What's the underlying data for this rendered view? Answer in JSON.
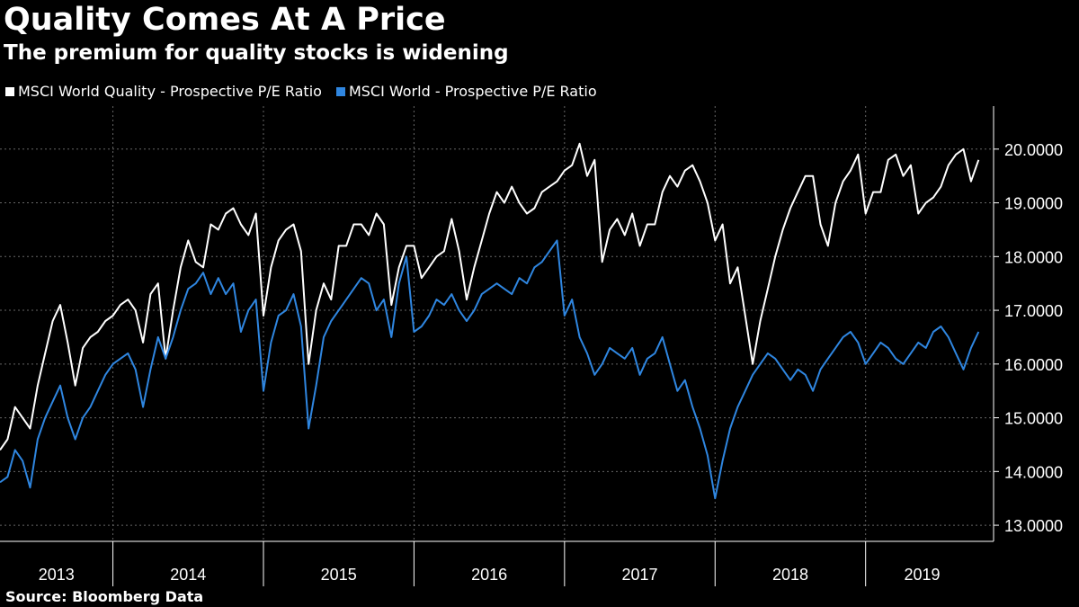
{
  "chart_data": {
    "type": "line",
    "title": "Quality Comes At A Price",
    "subtitle": "The premium for quality stocks is widening",
    "source": "Source:  Bloomberg Data",
    "ylim": [
      12.7,
      20.8
    ],
    "yticks": [
      "13.0000",
      "14.0000",
      "15.0000",
      "16.0000",
      "17.0000",
      "18.0000",
      "19.0000",
      "20.0000"
    ],
    "ytick_values": [
      13,
      14,
      15,
      16,
      17,
      18,
      19,
      20
    ],
    "x_range": [
      2013.0,
      2019.6
    ],
    "year_labels": [
      "2013",
      "2014",
      "2015",
      "2016",
      "2017",
      "2018",
      "2019"
    ],
    "year_boundaries": [
      2013.75,
      2014.75,
      2015.75,
      2016.75,
      2017.75,
      2018.75
    ],
    "series": [
      {
        "name": "MSCI World Quality - Prospective P/E Ratio",
        "color": "#ffffff",
        "x": [
          2013.0,
          2013.05,
          2013.1,
          2013.15,
          2013.2,
          2013.25,
          2013.3,
          2013.35,
          2013.4,
          2013.45,
          2013.5,
          2013.55,
          2013.6,
          2013.65,
          2013.7,
          2013.75,
          2013.8,
          2013.85,
          2013.9,
          2013.95,
          2014.0,
          2014.05,
          2014.1,
          2014.15,
          2014.2,
          2014.25,
          2014.3,
          2014.35,
          2014.4,
          2014.45,
          2014.5,
          2014.55,
          2014.6,
          2014.65,
          2014.7,
          2014.75,
          2014.8,
          2014.85,
          2014.9,
          2014.95,
          2015.0,
          2015.05,
          2015.1,
          2015.15,
          2015.2,
          2015.25,
          2015.3,
          2015.35,
          2015.4,
          2015.45,
          2015.5,
          2015.55,
          2015.6,
          2015.65,
          2015.7,
          2015.75,
          2015.8,
          2015.85,
          2015.9,
          2015.95,
          2016.0,
          2016.05,
          2016.1,
          2016.15,
          2016.2,
          2016.25,
          2016.3,
          2016.35,
          2016.4,
          2016.45,
          2016.5,
          2016.55,
          2016.6,
          2016.65,
          2016.7,
          2016.75,
          2016.8,
          2016.85,
          2016.9,
          2016.95,
          2017.0,
          2017.05,
          2017.1,
          2017.15,
          2017.2,
          2017.25,
          2017.3,
          2017.35,
          2017.4,
          2017.45,
          2017.5,
          2017.55,
          2017.6,
          2017.65,
          2017.7,
          2017.75,
          2017.8,
          2017.85,
          2017.9,
          2017.95,
          2018.0,
          2018.05,
          2018.1,
          2018.15,
          2018.2,
          2018.25,
          2018.3,
          2018.35,
          2018.4,
          2018.45,
          2018.5,
          2018.55,
          2018.6,
          2018.65,
          2018.7,
          2018.75,
          2018.8,
          2018.85,
          2018.9,
          2018.95,
          2019.0,
          2019.05,
          2019.1,
          2019.15,
          2019.2,
          2019.25,
          2019.3,
          2019.35,
          2019.4,
          2019.45,
          2019.5
        ],
        "values": [
          14.4,
          14.6,
          15.2,
          15.0,
          14.8,
          15.6,
          16.2,
          16.8,
          17.1,
          16.4,
          15.6,
          16.3,
          16.5,
          16.6,
          16.8,
          16.9,
          17.1,
          17.2,
          17.0,
          16.4,
          17.3,
          17.5,
          16.1,
          17.0,
          17.8,
          18.3,
          17.9,
          17.8,
          18.6,
          18.5,
          18.8,
          18.9,
          18.6,
          18.4,
          18.8,
          16.9,
          17.8,
          18.3,
          18.5,
          18.6,
          18.1,
          16.0,
          17.0,
          17.5,
          17.2,
          18.2,
          18.2,
          18.6,
          18.6,
          18.4,
          18.8,
          18.6,
          17.1,
          17.8,
          18.2,
          18.2,
          17.6,
          17.8,
          18.0,
          18.1,
          18.7,
          18.1,
          17.2,
          17.8,
          18.3,
          18.8,
          19.2,
          19.0,
          19.3,
          19.0,
          18.8,
          18.9,
          19.2,
          19.3,
          19.4,
          19.6,
          19.7,
          20.1,
          19.5,
          19.8,
          17.9,
          18.5,
          18.7,
          18.4,
          18.8,
          18.2,
          18.6,
          18.6,
          19.2,
          19.5,
          19.3,
          19.6,
          19.7,
          19.4,
          19.0,
          18.3,
          18.6,
          17.5,
          17.8,
          16.9,
          16.0,
          16.8,
          17.4,
          18.0,
          18.5,
          18.9,
          19.2,
          19.5,
          19.5,
          18.6,
          18.2,
          19.0,
          19.4,
          19.6,
          19.9,
          18.8,
          19.2,
          19.2,
          19.8,
          19.9,
          19.5,
          19.7,
          18.8,
          19.0,
          19.1,
          19.3,
          19.7,
          19.9,
          20.0,
          19.4,
          19.8
        ]
      },
      {
        "name": "MSCI World - Prospective P/E Ratio",
        "color": "#2f86e0",
        "x": [
          2013.0,
          2013.05,
          2013.1,
          2013.15,
          2013.2,
          2013.25,
          2013.3,
          2013.35,
          2013.4,
          2013.45,
          2013.5,
          2013.55,
          2013.6,
          2013.65,
          2013.7,
          2013.75,
          2013.8,
          2013.85,
          2013.9,
          2013.95,
          2014.0,
          2014.05,
          2014.1,
          2014.15,
          2014.2,
          2014.25,
          2014.3,
          2014.35,
          2014.4,
          2014.45,
          2014.5,
          2014.55,
          2014.6,
          2014.65,
          2014.7,
          2014.75,
          2014.8,
          2014.85,
          2014.9,
          2014.95,
          2015.0,
          2015.05,
          2015.1,
          2015.15,
          2015.2,
          2015.25,
          2015.3,
          2015.35,
          2015.4,
          2015.45,
          2015.5,
          2015.55,
          2015.6,
          2015.65,
          2015.7,
          2015.75,
          2015.8,
          2015.85,
          2015.9,
          2015.95,
          2016.0,
          2016.05,
          2016.1,
          2016.15,
          2016.2,
          2016.25,
          2016.3,
          2016.35,
          2016.4,
          2016.45,
          2016.5,
          2016.55,
          2016.6,
          2016.65,
          2016.7,
          2016.75,
          2016.8,
          2016.85,
          2016.9,
          2016.95,
          2017.0,
          2017.05,
          2017.1,
          2017.15,
          2017.2,
          2017.25,
          2017.3,
          2017.35,
          2017.4,
          2017.45,
          2017.5,
          2017.55,
          2017.6,
          2017.65,
          2017.7,
          2017.75,
          2017.8,
          2017.85,
          2017.9,
          2017.95,
          2018.0,
          2018.05,
          2018.1,
          2018.15,
          2018.2,
          2018.25,
          2018.3,
          2018.35,
          2018.4,
          2018.45,
          2018.5,
          2018.55,
          2018.6,
          2018.65,
          2018.7,
          2018.75,
          2018.8,
          2018.85,
          2018.9,
          2018.95,
          2019.0,
          2019.05,
          2019.1,
          2019.15,
          2019.2,
          2019.25,
          2019.3,
          2019.35,
          2019.4,
          2019.45,
          2019.5
        ],
        "values": [
          13.8,
          13.9,
          14.4,
          14.2,
          13.7,
          14.6,
          15.0,
          15.3,
          15.6,
          15.0,
          14.6,
          15.0,
          15.2,
          15.5,
          15.8,
          16.0,
          16.1,
          16.2,
          15.9,
          15.2,
          15.9,
          16.5,
          16.1,
          16.5,
          17.0,
          17.4,
          17.5,
          17.7,
          17.3,
          17.6,
          17.3,
          17.5,
          16.6,
          17.0,
          17.2,
          15.5,
          16.4,
          16.9,
          17.0,
          17.3,
          16.7,
          14.8,
          15.6,
          16.5,
          16.8,
          17.0,
          17.2,
          17.4,
          17.6,
          17.5,
          17.0,
          17.2,
          16.5,
          17.5,
          18.0,
          16.6,
          16.7,
          16.9,
          17.2,
          17.1,
          17.3,
          17.0,
          16.8,
          17.0,
          17.3,
          17.4,
          17.5,
          17.4,
          17.3,
          17.6,
          17.5,
          17.8,
          17.9,
          18.1,
          18.3,
          16.9,
          17.2,
          16.5,
          16.2,
          15.8,
          16.0,
          16.3,
          16.2,
          16.1,
          16.3,
          15.8,
          16.1,
          16.2,
          16.5,
          16.0,
          15.5,
          15.7,
          15.2,
          14.8,
          14.3,
          13.5,
          14.2,
          14.8,
          15.2,
          15.5,
          15.8,
          16.0,
          16.2,
          16.1,
          15.9,
          15.7,
          15.9,
          15.8,
          15.5,
          15.9,
          16.1,
          16.3,
          16.5,
          16.6,
          16.4,
          16.0,
          16.2,
          16.4,
          16.3,
          16.1,
          16.0,
          16.2,
          16.4,
          16.3,
          16.6,
          16.7,
          16.5,
          16.2,
          15.9,
          16.3,
          16.6
        ]
      }
    ]
  }
}
